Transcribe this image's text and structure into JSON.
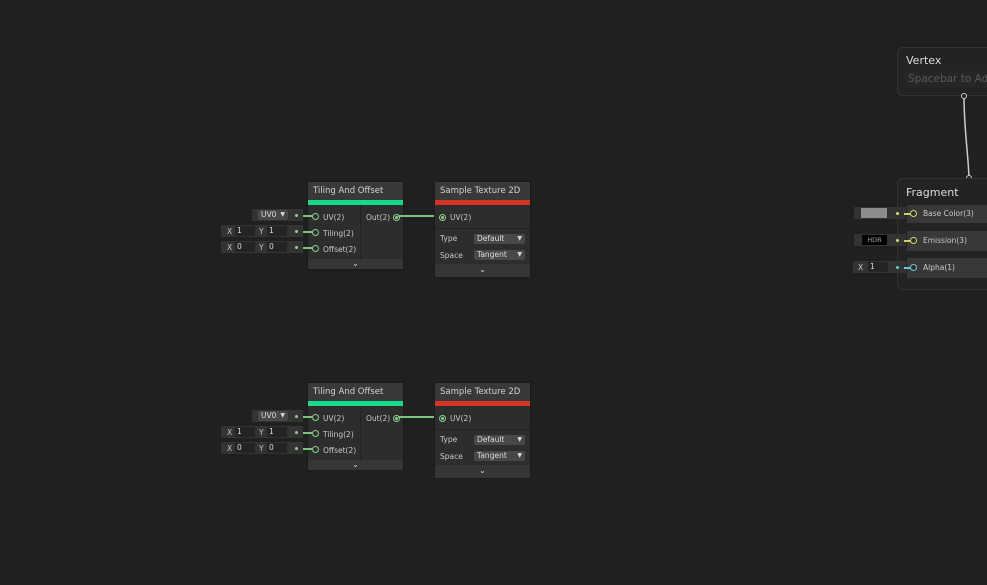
{
  "groups": [
    {
      "tiling_node": {
        "title": "Tiling And Offset",
        "inputs": [
          "UV(2)",
          "Tiling(2)",
          "Offset(2)"
        ],
        "output": "Out(2)",
        "color": "#17d98a"
      },
      "uv_dropdown": "UV0",
      "tiling": {
        "x_label": "X",
        "x": "1",
        "y_label": "Y",
        "y": "1"
      },
      "offset": {
        "x_label": "X",
        "x": "0",
        "y_label": "Y",
        "y": "0"
      },
      "sample_node": {
        "title": "Sample Texture 2D",
        "input": "UV(2)",
        "type_label": "Type",
        "type_value": "Default",
        "space_label": "Space",
        "space_value": "Tangent",
        "color": "#d63324"
      }
    },
    {
      "tiling_node": {
        "title": "Tiling And Offset",
        "inputs": [
          "UV(2)",
          "Tiling(2)",
          "Offset(2)"
        ],
        "output": "Out(2)",
        "color": "#17d98a"
      },
      "uv_dropdown": "UV0",
      "tiling": {
        "x_label": "X",
        "x": "1",
        "y_label": "Y",
        "y": "1"
      },
      "offset": {
        "x_label": "X",
        "x": "0",
        "y_label": "Y",
        "y": "0"
      },
      "sample_node": {
        "title": "Sample Texture 2D",
        "input": "UV(2)",
        "type_label": "Type",
        "type_value": "Default",
        "space_label": "Space",
        "space_value": "Tangent",
        "color": "#d63324"
      }
    }
  ],
  "vertex": {
    "title": "Vertex",
    "placeholder": "Spacebar to Add"
  },
  "fragment": {
    "title": "Fragment",
    "base_color": {
      "label": "Base Color(3)",
      "swatch": "#8c8c8c"
    },
    "emission": {
      "label": "Emission(3)",
      "value": "HDR"
    },
    "alpha": {
      "label": "Alpha(1)",
      "x_label": "X",
      "value": "1"
    }
  }
}
